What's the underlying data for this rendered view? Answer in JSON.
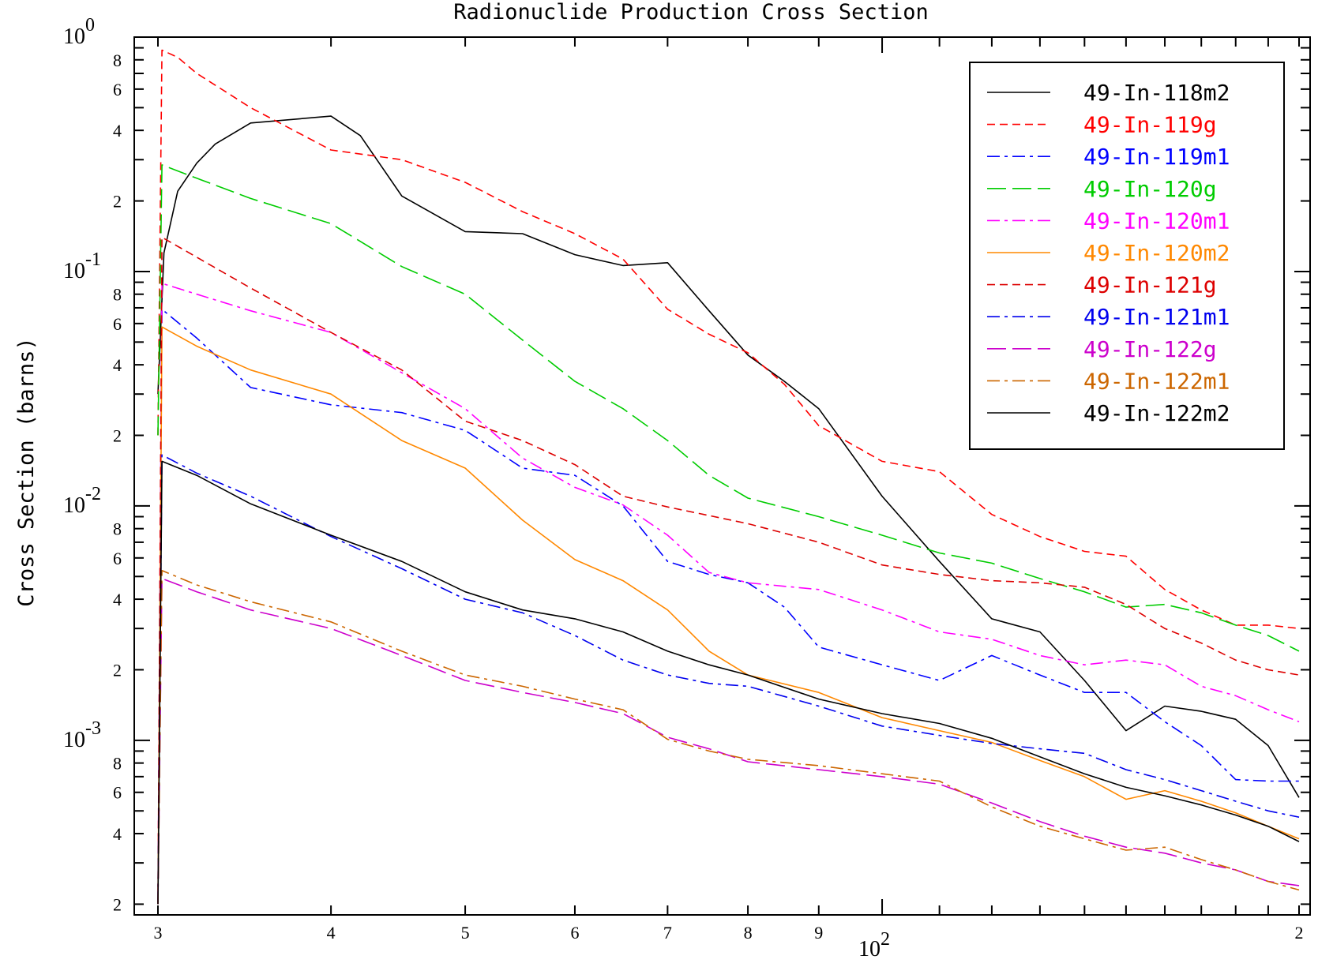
{
  "chart_data": {
    "type": "line",
    "title": "Radionuclide Production Cross Section",
    "xlabel": "",
    "ylabel": "Cross Section (barns)",
    "x_scale": "log",
    "y_scale": "log",
    "xlim": [
      30,
      200
    ],
    "ylim": [
      0.00018,
      1.0
    ],
    "grid": false,
    "legend_position": "top-right",
    "x_tick_labels": [
      {
        "value": 30,
        "label": "3"
      },
      {
        "value": 40,
        "label": "4"
      },
      {
        "value": 50,
        "label": "5"
      },
      {
        "value": 60,
        "label": "6"
      },
      {
        "value": 70,
        "label": "7"
      },
      {
        "value": 80,
        "label": "8"
      },
      {
        "value": 90,
        "label": "9"
      },
      {
        "value": 200,
        "label": "2"
      }
    ],
    "x_decade_label": {
      "value": 100,
      "base": "10",
      "exponent": "2"
    },
    "y_decade_labels": [
      {
        "value": 1.0,
        "base": "10",
        "exponent": "0"
      },
      {
        "value": 0.1,
        "base": "10",
        "exponent": "-1"
      },
      {
        "value": 0.01,
        "base": "10",
        "exponent": "-2"
      },
      {
        "value": 0.001,
        "base": "10",
        "exponent": "-3"
      }
    ],
    "y_minor_labels": [
      {
        "value": 0.8,
        "label": "8"
      },
      {
        "value": 0.6,
        "label": "6"
      },
      {
        "value": 0.4,
        "label": "4"
      },
      {
        "value": 0.2,
        "label": "2"
      },
      {
        "value": 0.08,
        "label": "8"
      },
      {
        "value": 0.06,
        "label": "6"
      },
      {
        "value": 0.04,
        "label": "4"
      },
      {
        "value": 0.02,
        "label": "2"
      },
      {
        "value": 0.008,
        "label": "8"
      },
      {
        "value": 0.006,
        "label": "6"
      },
      {
        "value": 0.004,
        "label": "4"
      },
      {
        "value": 0.002,
        "label": "2"
      },
      {
        "value": 0.0008,
        "label": "8"
      },
      {
        "value": 0.0006,
        "label": "6"
      },
      {
        "value": 0.0004,
        "label": "4"
      },
      {
        "value": 0.0002,
        "label": "2"
      }
    ],
    "series": [
      {
        "name": "49-In-118m2",
        "color": "#000000",
        "dash": "solid",
        "x": [
          30,
          30.3,
          31,
          32,
          33,
          35,
          40,
          42,
          45,
          50,
          55,
          60,
          65,
          70,
          75,
          80,
          85,
          90,
          100,
          110,
          120,
          130,
          140,
          150,
          160,
          170,
          180,
          190,
          200
        ],
        "y": [
          0.03,
          0.12,
          0.22,
          0.29,
          0.35,
          0.43,
          0.46,
          0.38,
          0.21,
          0.148,
          0.145,
          0.118,
          0.106,
          0.109,
          0.068,
          0.044,
          0.034,
          0.026,
          0.011,
          0.0058,
          0.0033,
          0.0029,
          0.0018,
          0.0011,
          0.0014,
          0.00133,
          0.00123,
          0.00095,
          0.00057
        ]
      },
      {
        "name": "49-In-119g",
        "color": "#ff0000",
        "dash": "dashed",
        "x": [
          30,
          30.2,
          31,
          32,
          35,
          40,
          45,
          50,
          55,
          60,
          65,
          70,
          75,
          80,
          85,
          90,
          100,
          110,
          120,
          130,
          140,
          150,
          160,
          170,
          180,
          190,
          200
        ],
        "y": [
          0.02,
          0.88,
          0.82,
          0.7,
          0.5,
          0.33,
          0.3,
          0.24,
          0.18,
          0.145,
          0.113,
          0.069,
          0.054,
          0.045,
          0.033,
          0.022,
          0.0155,
          0.014,
          0.0092,
          0.0074,
          0.0064,
          0.0061,
          0.0044,
          0.0036,
          0.0031,
          0.0031,
          0.003
        ]
      },
      {
        "name": "49-In-119m1",
        "color": "#0000ff",
        "dash": "dashdot",
        "x": [
          30,
          30.2,
          32,
          35,
          40,
          45,
          50,
          55,
          60,
          65,
          70,
          75,
          80,
          85,
          90,
          100,
          110,
          120,
          130,
          140,
          150,
          160,
          170,
          180,
          190,
          200
        ],
        "y": [
          0.0002,
          0.069,
          0.052,
          0.032,
          0.027,
          0.025,
          0.021,
          0.0145,
          0.0135,
          0.01,
          0.0058,
          0.0051,
          0.0047,
          0.0037,
          0.0025,
          0.0021,
          0.0018,
          0.0023,
          0.0019,
          0.0016,
          0.0016,
          0.0012,
          0.00095,
          0.00068,
          0.00067,
          0.00067
        ]
      },
      {
        "name": "49-In-120g",
        "color": "#00cc00",
        "dash": "longdash",
        "x": [
          30,
          30.2,
          32,
          35,
          40,
          45,
          50,
          55,
          60,
          65,
          70,
          75,
          80,
          90,
          100,
          110,
          120,
          130,
          140,
          150,
          160,
          170,
          180,
          190,
          200
        ],
        "y": [
          0.02,
          0.285,
          0.25,
          0.205,
          0.16,
          0.105,
          0.08,
          0.051,
          0.034,
          0.026,
          0.019,
          0.0135,
          0.0108,
          0.009,
          0.0075,
          0.0063,
          0.0057,
          0.0049,
          0.0043,
          0.0037,
          0.0038,
          0.0035,
          0.0031,
          0.0028,
          0.0024
        ]
      },
      {
        "name": "49-In-120m1",
        "color": "#ff00ff",
        "dash": "dashdot",
        "x": [
          30,
          30.2,
          32,
          35,
          40,
          45,
          50,
          55,
          60,
          65,
          70,
          75,
          80,
          90,
          100,
          110,
          120,
          130,
          140,
          150,
          160,
          170,
          180,
          190,
          200
        ],
        "y": [
          0.0002,
          0.089,
          0.08,
          0.068,
          0.055,
          0.037,
          0.026,
          0.016,
          0.012,
          0.0101,
          0.0075,
          0.0052,
          0.0047,
          0.0044,
          0.0036,
          0.0029,
          0.0027,
          0.0023,
          0.0021,
          0.0022,
          0.0021,
          0.0017,
          0.00155,
          0.00135,
          0.0012
        ]
      },
      {
        "name": "49-In-120m2",
        "color": "#ff8800",
        "dash": "solid",
        "x": [
          30,
          30.2,
          32,
          35,
          40,
          45,
          50,
          55,
          60,
          65,
          70,
          75,
          80,
          90,
          100,
          110,
          120,
          130,
          140,
          150,
          160,
          170,
          180,
          190,
          200
        ],
        "y": [
          0.0002,
          0.058,
          0.048,
          0.038,
          0.03,
          0.019,
          0.0145,
          0.0087,
          0.0059,
          0.0048,
          0.0036,
          0.0024,
          0.0019,
          0.0016,
          0.00125,
          0.0011,
          0.00098,
          0.00082,
          0.0007,
          0.00056,
          0.00061,
          0.00055,
          0.00049,
          0.00043,
          0.00038
        ]
      },
      {
        "name": "49-In-121g",
        "color": "#dd0000",
        "dash": "dashed",
        "x": [
          30,
          30.2,
          32,
          35,
          40,
          45,
          50,
          55,
          60,
          65,
          70,
          75,
          80,
          90,
          100,
          110,
          120,
          130,
          140,
          150,
          160,
          170,
          180,
          190,
          200
        ],
        "y": [
          0.0002,
          0.14,
          0.115,
          0.085,
          0.055,
          0.038,
          0.023,
          0.019,
          0.015,
          0.011,
          0.0099,
          0.0091,
          0.0084,
          0.007,
          0.0056,
          0.0051,
          0.0048,
          0.0047,
          0.0045,
          0.0038,
          0.003,
          0.0026,
          0.0022,
          0.002,
          0.0019
        ]
      },
      {
        "name": "49-In-121m1",
        "color": "#0000ee",
        "dash": "dashdot",
        "x": [
          30,
          30.2,
          32,
          35,
          40,
          45,
          50,
          55,
          60,
          65,
          70,
          75,
          80,
          90,
          100,
          110,
          120,
          130,
          140,
          150,
          160,
          170,
          180,
          190,
          200
        ],
        "y": [
          0.0002,
          0.0165,
          0.0138,
          0.011,
          0.0074,
          0.0054,
          0.004,
          0.0035,
          0.0028,
          0.0022,
          0.0019,
          0.00175,
          0.0017,
          0.0014,
          0.00115,
          0.00105,
          0.00097,
          0.00092,
          0.00088,
          0.00075,
          0.00068,
          0.00061,
          0.00055,
          0.0005,
          0.00047
        ]
      },
      {
        "name": "49-In-122g",
        "color": "#cc00cc",
        "dash": "longdash",
        "x": [
          30,
          30.2,
          32,
          35,
          40,
          45,
          50,
          55,
          60,
          65,
          70,
          75,
          80,
          90,
          100,
          110,
          120,
          130,
          140,
          150,
          160,
          170,
          180,
          190,
          200
        ],
        "y": [
          0.0002,
          0.0049,
          0.0043,
          0.0036,
          0.003,
          0.0023,
          0.0018,
          0.0016,
          0.00145,
          0.0013,
          0.00103,
          0.00092,
          0.00081,
          0.00075,
          0.0007,
          0.00065,
          0.00054,
          0.00045,
          0.00039,
          0.00035,
          0.00033,
          0.0003,
          0.00028,
          0.00025,
          0.00024
        ]
      },
      {
        "name": "49-In-122m1",
        "color": "#cc6600",
        "dash": "dashdot",
        "x": [
          30,
          30.2,
          32,
          35,
          40,
          45,
          50,
          55,
          60,
          65,
          70,
          75,
          80,
          90,
          100,
          110,
          120,
          130,
          140,
          150,
          160,
          170,
          180,
          190,
          200
        ],
        "y": [
          0.0002,
          0.0053,
          0.0046,
          0.0039,
          0.0032,
          0.0024,
          0.0019,
          0.0017,
          0.0015,
          0.00135,
          0.00101,
          0.0009,
          0.00083,
          0.00078,
          0.00072,
          0.00067,
          0.00052,
          0.00043,
          0.00038,
          0.00034,
          0.00035,
          0.00031,
          0.00028,
          0.00025,
          0.00023
        ]
      },
      {
        "name": "49-In-122m2",
        "color": "#000000",
        "dash": "solid",
        "x": [
          30,
          30.2,
          32,
          35,
          40,
          45,
          50,
          55,
          60,
          65,
          70,
          75,
          80,
          90,
          100,
          110,
          120,
          130,
          140,
          150,
          160,
          170,
          180,
          190,
          200
        ],
        "y": [
          0.0002,
          0.0155,
          0.0135,
          0.0102,
          0.0075,
          0.0058,
          0.0043,
          0.0036,
          0.0033,
          0.0029,
          0.0024,
          0.0021,
          0.0019,
          0.0015,
          0.0013,
          0.00118,
          0.00102,
          0.00085,
          0.00072,
          0.00063,
          0.00058,
          0.00053,
          0.00048,
          0.00043,
          0.00037
        ]
      }
    ]
  }
}
